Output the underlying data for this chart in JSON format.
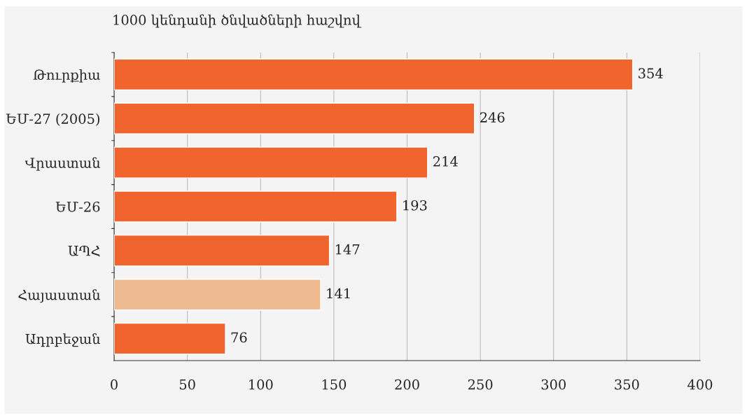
{
  "chart_data": {
    "type": "bar",
    "orientation": "horizontal",
    "title": "1000 կենդանի ծնվածների հաշվով",
    "categories": [
      "Թուրքիա",
      "ԵՄ-27 (2005)",
      "Վրաստան",
      "ԵՄ-26",
      "ԱՊՀ",
      "Հայաստան",
      "Ադրբեջան"
    ],
    "values": [
      354,
      246,
      214,
      193,
      147,
      141,
      76
    ],
    "colors": [
      "#f0642e",
      "#f0642e",
      "#f0642e",
      "#f0642e",
      "#f0642e",
      "#eebb90",
      "#f0642e"
    ],
    "xlim": [
      0,
      400
    ],
    "xticks": [
      0,
      50,
      100,
      150,
      200,
      250,
      300,
      350,
      400
    ],
    "grid": "x",
    "data_labels": true
  }
}
